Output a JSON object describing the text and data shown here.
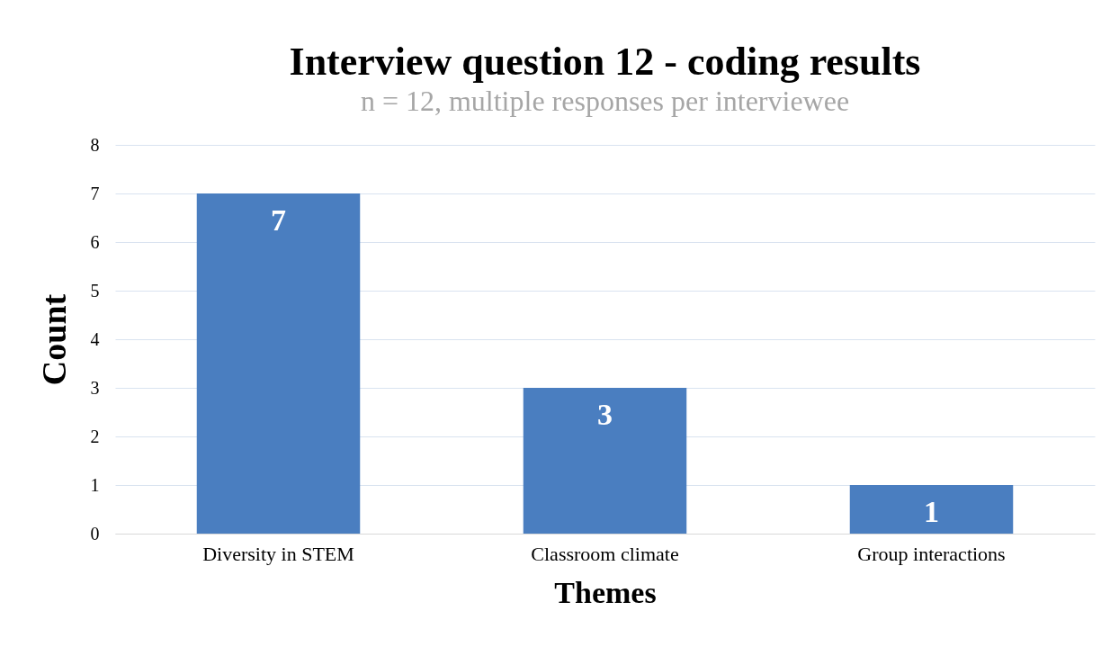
{
  "chart_data": {
    "type": "bar",
    "title": "Interview question 12 - coding results",
    "subtitle": "n = 12, multiple responses per interviewee",
    "xlabel": "Themes",
    "ylabel": "Count",
    "categories": [
      "Diversity in STEM",
      "Classroom climate",
      "Group interactions"
    ],
    "values": [
      7,
      3,
      1
    ],
    "color": "#4a7ec0",
    "ylim": [
      0,
      8
    ],
    "yticks": [
      0,
      1,
      2,
      3,
      4,
      5,
      6,
      7,
      8
    ],
    "grid": "y",
    "data_labels": true
  }
}
